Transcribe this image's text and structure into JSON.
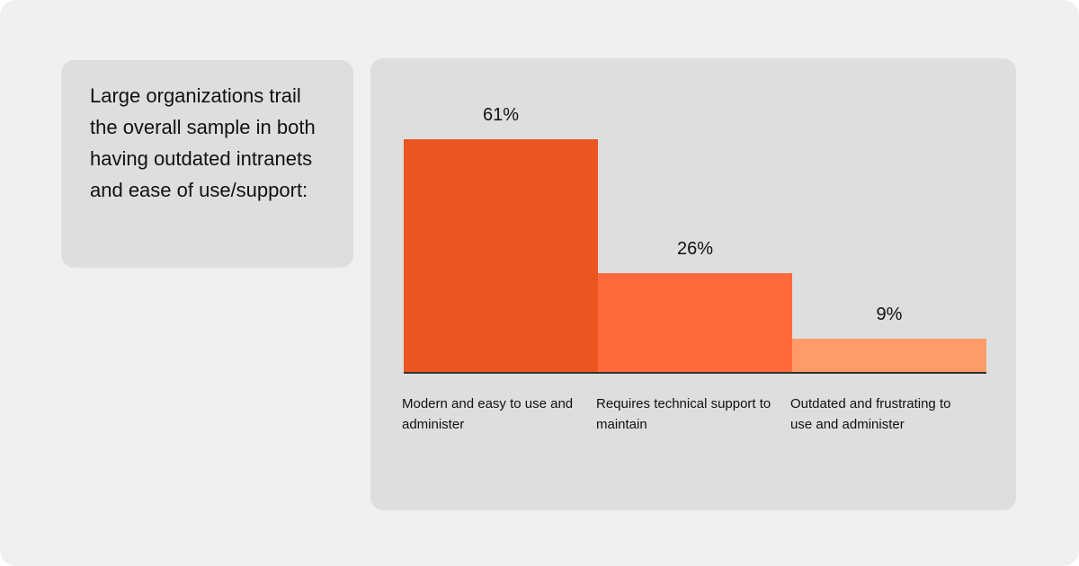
{
  "chart_data": {
    "type": "bar",
    "title": "Large organizations trail the overall sample in both having outdated intranets and ease of use/support:",
    "categories": [
      "Modern and easy to use and administer",
      "Requires technical support to maintain",
      "Outdated and frustrating to use and administer"
    ],
    "values": [
      61,
      26,
      9
    ],
    "value_labels": [
      "61%",
      "26%",
      "9%"
    ],
    "colors": [
      "#ea5520",
      "#ff6a3d",
      "#ff9b68"
    ]
  }
}
